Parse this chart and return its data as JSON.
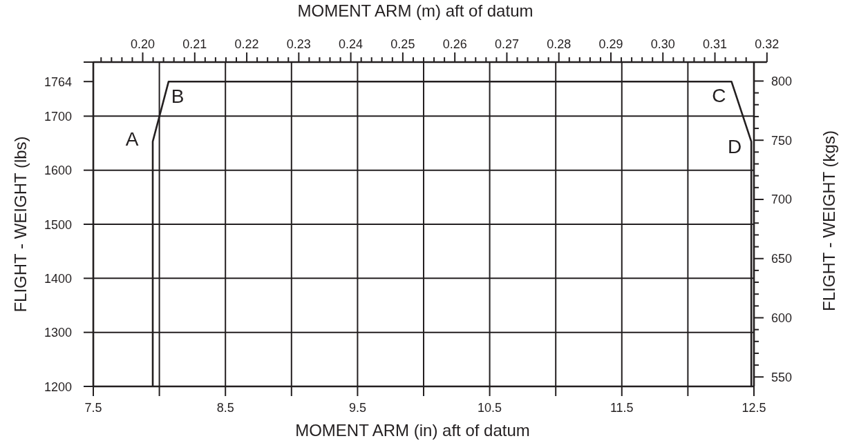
{
  "chart_data": {
    "type": "line",
    "xlabel": "MOMENT ARM (in) aft of datum",
    "x2label": "MOMENT ARM (m) aft of datum",
    "ylabel": "FLIGHT - WEIGHT (lbs)",
    "y2label": "FLIGHT - WEIGHT (kgs)",
    "x": [
      7.95,
      7.95,
      8.07,
      12.33,
      12.48,
      12.48
    ],
    "series": [
      {
        "color": "#231f20",
        "values": [
          1200,
          1653,
          1764,
          1764,
          1653,
          1200
        ]
      }
    ],
    "xlim": [
      7.5,
      12.5
    ],
    "xticks": [
      7.5,
      {
        "value": 8,
        "label": null
      },
      8.5,
      {
        "value": 9,
        "label": null
      },
      9.5,
      {
        "value": 10,
        "label": null
      },
      10.5,
      {
        "value": 11,
        "label": null
      },
      11.5,
      {
        "value": 12,
        "label": null
      },
      12.5
    ],
    "ylim": [
      1200,
      1800
    ],
    "yticks": [
      1200,
      1300,
      1400,
      1500,
      1600,
      1700,
      1764,
      {
        "value": 1800,
        "label": null
      }
    ],
    "x2lim": [
      0.1905,
      0.32
    ],
    "x2ticks": [
      {
        "value": 0.192,
        "label": null
      },
      {
        "value": 0.194,
        "label": null
      },
      {
        "value": 0.196,
        "label": null
      },
      {
        "value": 0.198,
        "label": null
      },
      {
        "value": 0.2,
        "label": "0.20"
      },
      {
        "value": 0.202,
        "label": null
      },
      {
        "value": 0.204,
        "label": null
      },
      {
        "value": 0.206,
        "label": null
      },
      {
        "value": 0.208,
        "label": null
      },
      0.21,
      {
        "value": 0.212,
        "label": null
      },
      {
        "value": 0.214,
        "label": null
      },
      {
        "value": 0.216,
        "label": null
      },
      {
        "value": 0.218,
        "label": null
      },
      0.22,
      {
        "value": 0.222,
        "label": null
      },
      {
        "value": 0.224,
        "label": null
      },
      {
        "value": 0.226,
        "label": null
      },
      {
        "value": 0.228,
        "label": null
      },
      0.23,
      {
        "value": 0.232,
        "label": null
      },
      {
        "value": 0.234,
        "label": null
      },
      {
        "value": 0.236,
        "label": null
      },
      {
        "value": 0.238,
        "label": null
      },
      0.24,
      {
        "value": 0.242,
        "label": null
      },
      {
        "value": 0.244,
        "label": null
      },
      {
        "value": 0.246,
        "label": null
      },
      {
        "value": 0.248,
        "label": null
      },
      0.25,
      {
        "value": 0.252,
        "label": null
      },
      {
        "value": 0.254,
        "label": null
      },
      {
        "value": 0.256,
        "label": null
      },
      {
        "value": 0.258,
        "label": null
      },
      0.26,
      {
        "value": 0.262,
        "label": null
      },
      {
        "value": 0.264,
        "label": null
      },
      {
        "value": 0.266,
        "label": null
      },
      {
        "value": 0.268,
        "label": null
      },
      0.27,
      {
        "value": 0.272,
        "label": null
      },
      {
        "value": 0.274,
        "label": null
      },
      {
        "value": 0.276,
        "label": null
      },
      {
        "value": 0.278,
        "label": null
      },
      0.28,
      {
        "value": 0.282,
        "label": null
      },
      {
        "value": 0.284,
        "label": null
      },
      {
        "value": 0.286,
        "label": null
      },
      {
        "value": 0.288,
        "label": null
      },
      0.29,
      {
        "value": 0.292,
        "label": null
      },
      {
        "value": 0.294,
        "label": null
      },
      {
        "value": 0.296,
        "label": null
      },
      {
        "value": 0.298,
        "label": null
      },
      {
        "value": 0.3,
        "label": "0.30"
      },
      {
        "value": 0.302,
        "label": null
      },
      {
        "value": 0.304,
        "label": null
      },
      {
        "value": 0.306,
        "label": null
      },
      {
        "value": 0.308,
        "label": null
      },
      0.31,
      {
        "value": 0.312,
        "label": null
      },
      {
        "value": 0.314,
        "label": null
      },
      {
        "value": 0.316,
        "label": null
      },
      0.32
    ],
    "y2lim": [
      542,
      816
    ],
    "y2ticks": [
      550,
      {
        "value": 560,
        "label": null
      },
      {
        "value": 570,
        "label": null
      },
      {
        "value": 580,
        "label": null
      },
      {
        "value": 590,
        "label": null
      },
      600,
      {
        "value": 610,
        "label": null
      },
      {
        "value": 620,
        "label": null
      },
      {
        "value": 630,
        "label": null
      },
      {
        "value": 640,
        "label": null
      },
      650,
      {
        "value": 660,
        "label": null
      },
      {
        "value": 670,
        "label": null
      },
      {
        "value": 680,
        "label": null
      },
      {
        "value": 690,
        "label": null
      },
      700,
      {
        "value": 710,
        "label": null
      },
      {
        "value": 720,
        "label": null
      },
      {
        "value": 730,
        "label": null
      },
      {
        "value": 740,
        "label": null
      },
      750,
      {
        "value": 760,
        "label": null
      },
      {
        "value": 770,
        "label": null
      },
      {
        "value": 780,
        "label": null
      },
      {
        "value": 790,
        "label": null
      },
      800
    ],
    "grid": true,
    "annotations": [
      {
        "text": "A",
        "x": 7.95,
        "y": 1653
      },
      {
        "text": "B",
        "x": 8.07,
        "y": 1764
      },
      {
        "text": "C",
        "x": 12.33,
        "y": 1764
      },
      {
        "text": "D",
        "x": 12.48,
        "y": 1653
      }
    ]
  }
}
